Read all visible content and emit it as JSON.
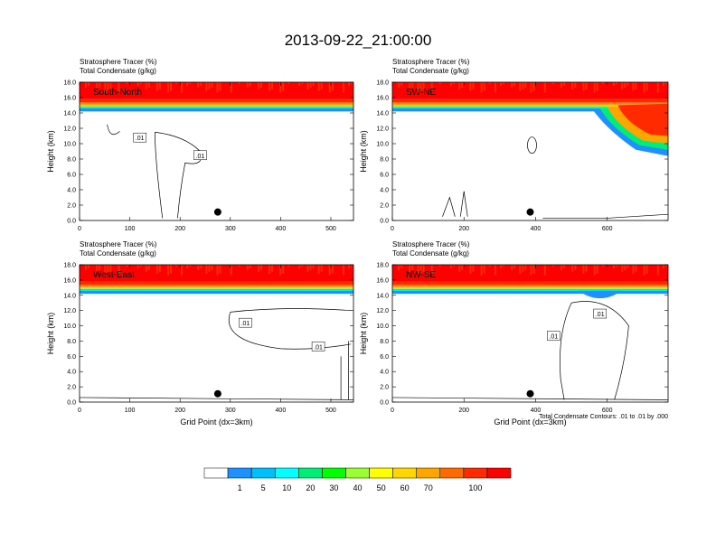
{
  "figure": {
    "title": "2013-09-22_21:00:00",
    "footnote": "Total Condensate Contours: .01 to .01 by .000",
    "colors": {
      "palette": [
        "#ffffff",
        "#1e90ff",
        "#00bfff",
        "#00ffff",
        "#00ee76",
        "#00ff00",
        "#9aff32",
        "#ffff00",
        "#ffd700",
        "#ffa500",
        "#ff6a00",
        "#ff2a00",
        "#ff0000"
      ],
      "marker": "#000000"
    }
  },
  "colorbar": {
    "labels": [
      "1",
      "5",
      "10",
      "20",
      "30",
      "40",
      "50",
      "60",
      "70",
      "100"
    ]
  },
  "chart_data": [
    {
      "type": "heatmap",
      "label": "South-North",
      "title_line1": "Stratosphere Tracer   (%)",
      "title_line2": "Total Condensate   (g/kg)",
      "ylabel": "Height (km)",
      "xlabel": "",
      "xlim": [
        0,
        545
      ],
      "ylim": [
        0,
        18
      ],
      "xticks": [
        "0",
        "100",
        "200",
        "300",
        "400",
        "500"
      ],
      "yticks": [
        "0.0",
        "2.0",
        "4.0",
        "6.0",
        "8.0",
        "10.0",
        "12.0",
        "14.0",
        "16.0",
        "18.0"
      ],
      "contour_labels": [
        {
          "text": ".01",
          "x": 240,
          "y": 8.5
        },
        {
          "text": ".01",
          "x": 120,
          "y": 10.8
        }
      ],
      "marker": {
        "x": 275,
        "y": 1.1
      },
      "tracer_base_km": 14.6
    },
    {
      "type": "heatmap",
      "label": "SW-NE",
      "title_line1": "Stratosphere Tracer   (%)",
      "title_line2": "Total Condensate   (g/kg)",
      "ylabel": "Height (km)",
      "xlabel": "",
      "xlim": [
        0,
        770
      ],
      "ylim": [
        0,
        18
      ],
      "xticks": [
        "0",
        "200",
        "400",
        "600"
      ],
      "yticks": [
        "0.0",
        "2.0",
        "4.0",
        "6.0",
        "8.0",
        "10.0",
        "12.0",
        "14.0",
        "16.0",
        "18.0"
      ],
      "contour_labels": [],
      "marker": {
        "x": 385,
        "y": 1.1
      },
      "tracer_base_km": 14.6
    },
    {
      "type": "heatmap",
      "label": "West-East",
      "title_line1": "Stratosphere Tracer   (%)",
      "title_line2": "Total Condensate   (g/kg)",
      "ylabel": "Height (km)",
      "xlabel": "Grid Point (dx=3km)",
      "xlim": [
        0,
        545
      ],
      "ylim": [
        0,
        18
      ],
      "xticks": [
        "0",
        "100",
        "200",
        "300",
        "400",
        "500"
      ],
      "yticks": [
        "0.0",
        "2.0",
        "4.0",
        "6.0",
        "8.0",
        "10.0",
        "12.0",
        "14.0",
        "16.0",
        "18.0"
      ],
      "contour_labels": [
        {
          "text": ".01",
          "x": 475,
          "y": 7.3
        },
        {
          "text": ".01",
          "x": 330,
          "y": 10.4
        }
      ],
      "marker": {
        "x": 275,
        "y": 1.1
      },
      "tracer_base_km": 14.6
    },
    {
      "type": "heatmap",
      "label": "NW-SE",
      "title_line1": "Stratosphere Tracer   (%)",
      "title_line2": "Total Condensate   (g/kg)",
      "ylabel": "Height (km)",
      "xlabel": "Grid Point (dx=3km)",
      "xlim": [
        0,
        770
      ],
      "ylim": [
        0,
        18
      ],
      "xticks": [
        "0",
        "200",
        "400",
        "600"
      ],
      "yticks": [
        "0.0",
        "2.0",
        "4.0",
        "6.0",
        "8.0",
        "10.0",
        "12.0",
        "14.0",
        "16.0",
        "18.0"
      ],
      "contour_labels": [
        {
          "text": ".01",
          "x": 580,
          "y": 11.6
        },
        {
          "text": ".01",
          "x": 450,
          "y": 8.7
        }
      ],
      "marker": {
        "x": 385,
        "y": 1.1
      },
      "tracer_base_km": 14.6
    }
  ]
}
